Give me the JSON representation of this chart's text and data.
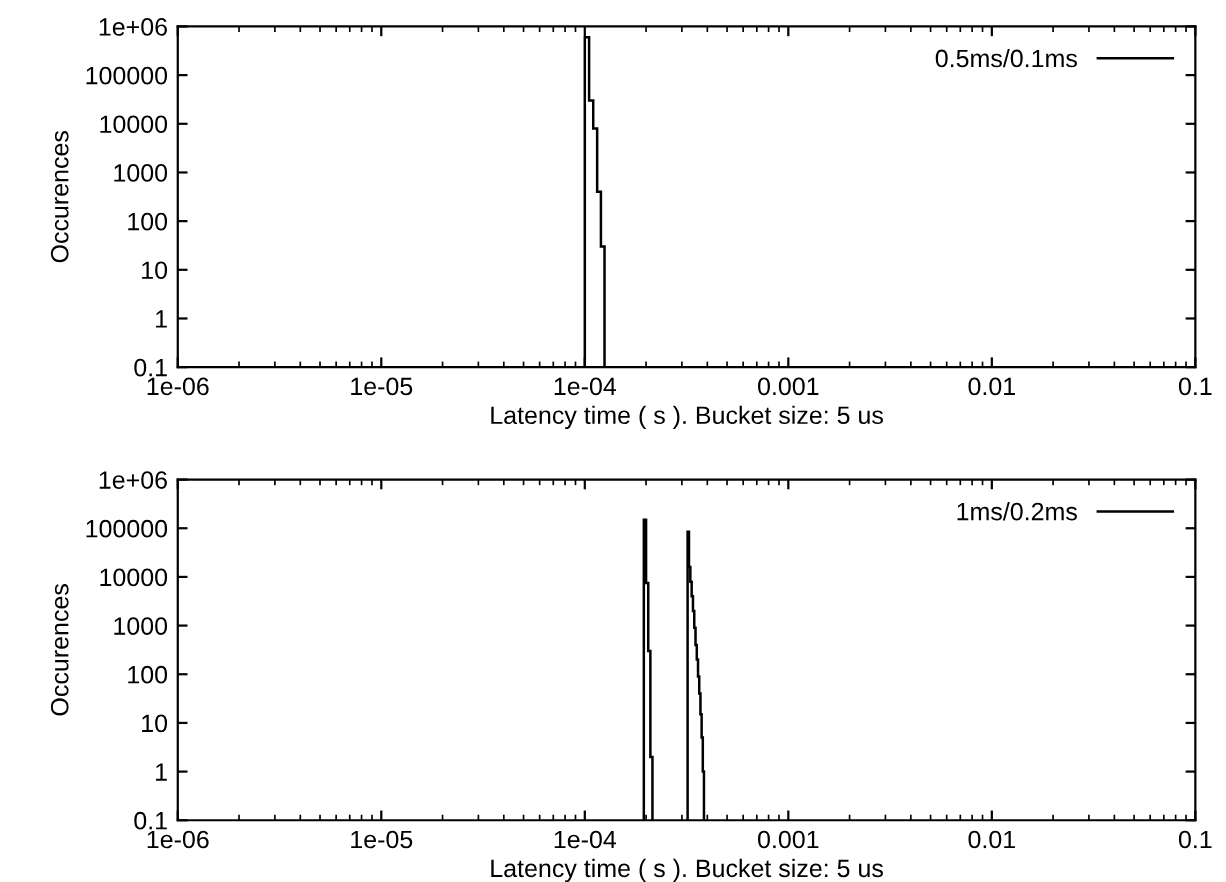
{
  "chart_data": [
    {
      "type": "histogram",
      "xlabel": "Latency time ( s ). Bucket size: 5 us",
      "ylabel": "Occurences",
      "log": "xy",
      "legend": "top right",
      "grid": false,
      "xlim": [
        1e-06,
        0.1
      ],
      "xticks": [
        {
          "value": 1e-06,
          "label": "1e-06"
        },
        {
          "value": 1e-05,
          "label": "1e-05"
        },
        {
          "value": 0.0001,
          "label": "1e-04"
        },
        0.001,
        0.01,
        0.1
      ],
      "ylim": [
        0.1,
        1000000
      ],
      "yticks": [
        0.1,
        1,
        10,
        100,
        1000,
        10000,
        100000,
        {
          "value": 1000000,
          "label": "1e+06"
        }
      ],
      "bins": [
        0.0001,
        0.000105,
        0.00011,
        0.000115,
        0.00012,
        0.000125
      ],
      "series": [
        {
          "name": "0.5ms/0.1ms",
          "color": "#000000",
          "values": [
            600000,
            30000,
            8000,
            400,
            30
          ]
        }
      ]
    },
    {
      "type": "histogram",
      "xlabel": "Latency time ( s ). Bucket size: 5 us",
      "ylabel": "Occurences",
      "log": "xy",
      "legend": "top right",
      "grid": false,
      "xlim": [
        1e-06,
        0.1
      ],
      "xticks": [
        {
          "value": 1e-06,
          "label": "1e-06"
        },
        {
          "value": 1e-05,
          "label": "1e-05"
        },
        {
          "value": 0.0001,
          "label": "1e-04"
        },
        0.001,
        0.01,
        0.1
      ],
      "ylim": [
        0.1,
        1000000
      ],
      "yticks": [
        0.1,
        1,
        10,
        100,
        1000,
        10000,
        100000,
        {
          "value": 1000000,
          "label": "1e+06"
        }
      ],
      "bins": [
        0.000195,
        0.0002,
        0.000205,
        0.00021,
        0.000215,
        0.00032,
        0.000325,
        0.00033,
        0.000335,
        0.00034,
        0.000345,
        0.00035,
        0.000355,
        0.00036,
        0.000365,
        0.00037,
        0.000375,
        0.00038,
        0.000385
      ],
      "series": [
        {
          "name": "1ms/0.2ms",
          "color": "#000000",
          "values": [
            150000,
            7500,
            300,
            2,
            null,
            85000,
            16000,
            8000,
            4000,
            2000,
            900,
            400,
            200,
            90,
            40,
            15,
            5,
            1
          ]
        }
      ]
    }
  ]
}
